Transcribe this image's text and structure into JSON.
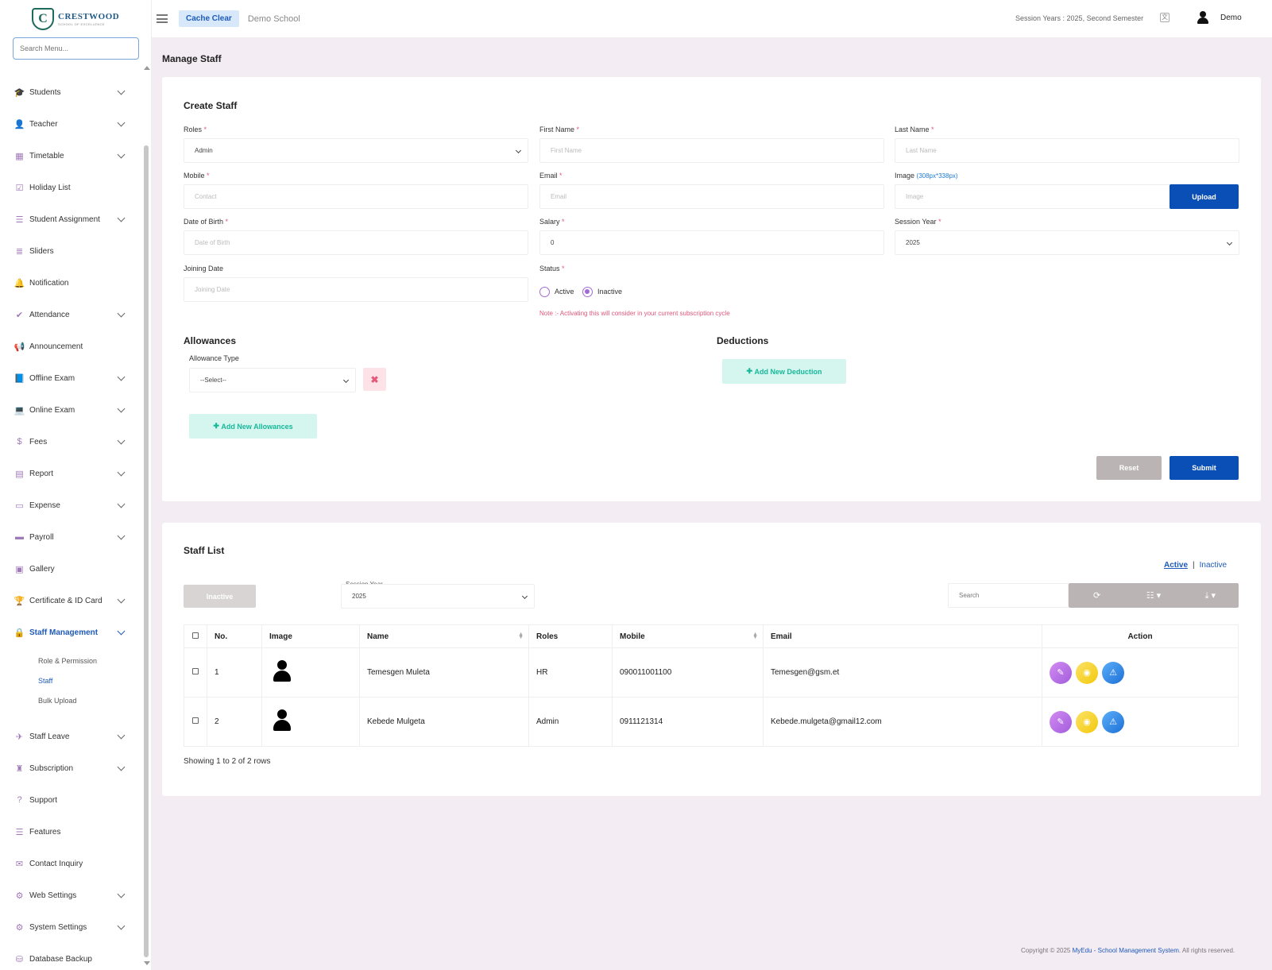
{
  "brand": {
    "name": "CRESTWOOD",
    "tagline": "SCHOOL OF EXCELLENCE",
    "monogram": "C"
  },
  "sidebar": {
    "search_placeholder": "Search Menu...",
    "items": [
      {
        "label": "Students",
        "icon": "graduation-cap-icon",
        "glyph": "🎓",
        "expandable": true
      },
      {
        "label": "Teacher",
        "icon": "user-icon",
        "glyph": "👤",
        "expandable": true
      },
      {
        "label": "Timetable",
        "icon": "calendar-icon",
        "glyph": "▦",
        "expandable": true
      },
      {
        "label": "Holiday List",
        "icon": "calendar-check-icon",
        "glyph": "☑",
        "expandable": false
      },
      {
        "label": "Student Assignment",
        "icon": "tasks-icon",
        "glyph": "☰",
        "expandable": true
      },
      {
        "label": "Sliders",
        "icon": "list-icon",
        "glyph": "≣",
        "expandable": false
      },
      {
        "label": "Notification",
        "icon": "bell-icon",
        "glyph": "🔔",
        "expandable": false
      },
      {
        "label": "Attendance",
        "icon": "check-icon",
        "glyph": "✔",
        "expandable": true
      },
      {
        "label": "Announcement",
        "icon": "bullhorn-icon",
        "glyph": "📢",
        "expandable": false
      },
      {
        "label": "Offline Exam",
        "icon": "book-icon",
        "glyph": "📘",
        "expandable": true
      },
      {
        "label": "Online Exam",
        "icon": "laptop-icon",
        "glyph": "💻",
        "expandable": true
      },
      {
        "label": "Fees",
        "icon": "dollar-icon",
        "glyph": "$",
        "expandable": true
      },
      {
        "label": "Report",
        "icon": "report-icon",
        "glyph": "▤",
        "expandable": true
      },
      {
        "label": "Expense",
        "icon": "money-icon",
        "glyph": "▭",
        "expandable": true
      },
      {
        "label": "Payroll",
        "icon": "credit-card-icon",
        "glyph": "▬",
        "expandable": true
      },
      {
        "label": "Gallery",
        "icon": "image-icon",
        "glyph": "▣",
        "expandable": false
      },
      {
        "label": "Certificate & ID Card",
        "icon": "trophy-icon",
        "glyph": "🏆",
        "expandable": true
      }
    ],
    "active_item": {
      "label": "Staff Management",
      "icon": "user-lock-icon",
      "glyph": "🔒"
    },
    "submenu": [
      {
        "label": "Role & Permission",
        "active": false
      },
      {
        "label": "Staff",
        "active": true
      },
      {
        "label": "Bulk Upload",
        "active": false
      }
    ],
    "items_after": [
      {
        "label": "Staff Leave",
        "icon": "plane-icon",
        "glyph": "✈",
        "expandable": true
      },
      {
        "label": "Subscription",
        "icon": "subscription-icon",
        "glyph": "♜",
        "expandable": true
      },
      {
        "label": "Support",
        "icon": "question-icon",
        "glyph": "?",
        "expandable": false
      },
      {
        "label": "Features",
        "icon": "features-list-icon",
        "glyph": "☰",
        "expandable": false
      },
      {
        "label": "Contact Inquiry",
        "icon": "envelope-icon",
        "glyph": "✉",
        "expandable": false
      },
      {
        "label": "Web Settings",
        "icon": "cogs-icon",
        "glyph": "⚙",
        "expandable": true
      },
      {
        "label": "System Settings",
        "icon": "gear-icon",
        "glyph": "⚙",
        "expandable": true
      },
      {
        "label": "Database Backup",
        "icon": "database-icon",
        "glyph": "⛁",
        "expandable": false
      }
    ]
  },
  "header": {
    "cache_clear": "Cache Clear",
    "school": "Demo School",
    "session": "Session Years : 2025, Second Semester",
    "user": "Demo"
  },
  "page": {
    "title": "Manage Staff"
  },
  "create": {
    "title": "Create Staff",
    "roles": {
      "label": "Roles",
      "value": "Admin"
    },
    "first_name": {
      "label": "First Name",
      "placeholder": "First Name"
    },
    "last_name": {
      "label": "Last Name",
      "placeholder": "Last Name"
    },
    "mobile": {
      "label": "Mobile",
      "placeholder": "Contact"
    },
    "email": {
      "label": "Email",
      "placeholder": "Email"
    },
    "image": {
      "label": "Image",
      "hint": "(308px*338px)",
      "placeholder": "Image",
      "button": "Upload"
    },
    "dob": {
      "label": "Date of Birth",
      "placeholder": "Date of Birth"
    },
    "salary": {
      "label": "Salary",
      "value": "0"
    },
    "session_year": {
      "label": "Session Year",
      "value": "2025"
    },
    "joining": {
      "label": "Joining Date",
      "placeholder": "Joining Date"
    },
    "status": {
      "label": "Status",
      "active": "Active",
      "inactive": "Inactive",
      "selected": "Inactive"
    },
    "note": "Note :- Activating this will consider in your current subscription cycle",
    "allowances": {
      "title": "Allowances",
      "type_label": "Allowance Type",
      "type_value": "--Select--",
      "add": "Add New Allowances"
    },
    "deductions": {
      "title": "Deductions",
      "add": "Add New Deduction"
    },
    "reset": "Reset",
    "submit": "Submit"
  },
  "list": {
    "title": "Staff List",
    "inactive_btn": "Inactive",
    "session_label": "Session Year",
    "session_value": "2025",
    "filter_active": "Active",
    "filter_sep": "|",
    "filter_inactive": "Inactive",
    "search_placeholder": "Search",
    "columns": [
      "No.",
      "Image",
      "Name",
      "Roles",
      "Mobile",
      "Email",
      "Action"
    ],
    "rows": [
      {
        "no": "1",
        "name": "Temesgen Muleta",
        "role": "HR",
        "mobile": "090011001100",
        "email": "Temesgen@gsm.et"
      },
      {
        "no": "2",
        "name": "Kebede Mulgeta",
        "role": "Admin",
        "mobile": "0911121314",
        "email": "Kebede.mulgeta@gmail12.com"
      }
    ],
    "showing": "Showing 1 to 2 of 2 rows"
  },
  "footer": {
    "prefix": "Copyright © 2025 ",
    "brand": "MyEdu - School Management System",
    "suffix": ". All rights reserved."
  },
  "colors": {
    "primary": "#0a4fb5",
    "accent": "#a36ad6",
    "mint": "#17b89a",
    "danger": "#e0577b"
  }
}
